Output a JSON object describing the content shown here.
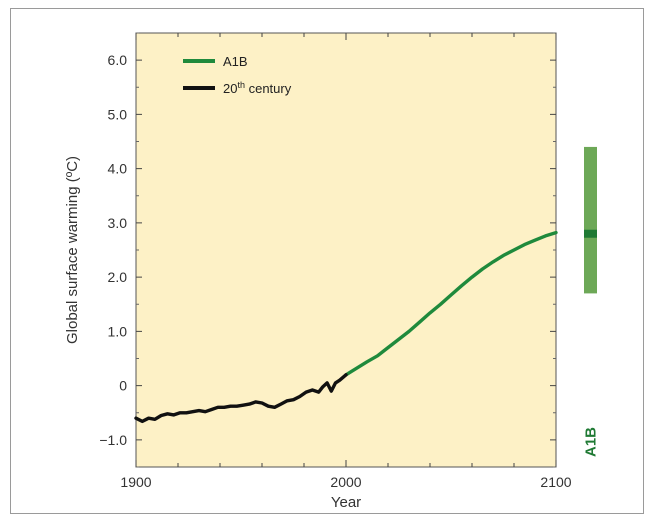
{
  "chart_data": {
    "type": "line",
    "title": "",
    "xlabel": "Year",
    "ylabel": "Global surface warming (ºC)",
    "xlim": [
      1900,
      2100
    ],
    "ylim": [
      -1.5,
      6.5
    ],
    "x_ticks": [
      1900,
      2000,
      2100
    ],
    "x_tick_labels": [
      "1900",
      "2000",
      "2100"
    ],
    "y_ticks": [
      6.0,
      5.0,
      4.0,
      3.0,
      2.0,
      1.0,
      0,
      -1.0
    ],
    "y_tick_labels": [
      "6.0",
      "5.0",
      "4.0",
      "3.0",
      "2.0",
      "1.0",
      "0",
      "−1.0"
    ],
    "grid": false,
    "legend_position": "top-left",
    "plot_background": "#fdf1c6",
    "series": [
      {
        "name": "A1B",
        "label_base": "A1B",
        "label_sup": "",
        "color": "#1f8a3c",
        "x": [
          2000,
          2005,
          2010,
          2015,
          2020,
          2025,
          2030,
          2035,
          2040,
          2045,
          2050,
          2055,
          2060,
          2065,
          2070,
          2075,
          2080,
          2085,
          2090,
          2095,
          2100
        ],
        "y": [
          0.2,
          0.32,
          0.44,
          0.55,
          0.7,
          0.85,
          1.0,
          1.17,
          1.34,
          1.5,
          1.67,
          1.84,
          2.0,
          2.15,
          2.28,
          2.4,
          2.5,
          2.6,
          2.68,
          2.76,
          2.82
        ]
      },
      {
        "name": "20th century",
        "label_base": "20",
        "label_sup": "th",
        "label_rest": " century",
        "color": "#111111",
        "x": [
          1900,
          1903,
          1906,
          1909,
          1912,
          1915,
          1918,
          1921,
          1924,
          1927,
          1930,
          1933,
          1936,
          1939,
          1942,
          1945,
          1948,
          1951,
          1954,
          1957,
          1960,
          1963,
          1966,
          1969,
          1972,
          1975,
          1978,
          1981,
          1984,
          1987,
          1989,
          1991,
          1993,
          1995,
          1997,
          2000
        ],
        "y": [
          -0.6,
          -0.66,
          -0.6,
          -0.62,
          -0.55,
          -0.52,
          -0.54,
          -0.5,
          -0.5,
          -0.48,
          -0.46,
          -0.48,
          -0.44,
          -0.4,
          -0.4,
          -0.38,
          -0.38,
          -0.36,
          -0.34,
          -0.3,
          -0.32,
          -0.38,
          -0.4,
          -0.34,
          -0.28,
          -0.26,
          -0.2,
          -0.12,
          -0.08,
          -0.12,
          -0.02,
          0.05,
          -0.1,
          0.05,
          0.1,
          0.2
        ]
      }
    ],
    "side_bar": {
      "label": "A1B",
      "color": "#6da857",
      "marker_color": "#1f7a34",
      "low": 1.7,
      "best": 2.8,
      "high": 4.4
    }
  }
}
